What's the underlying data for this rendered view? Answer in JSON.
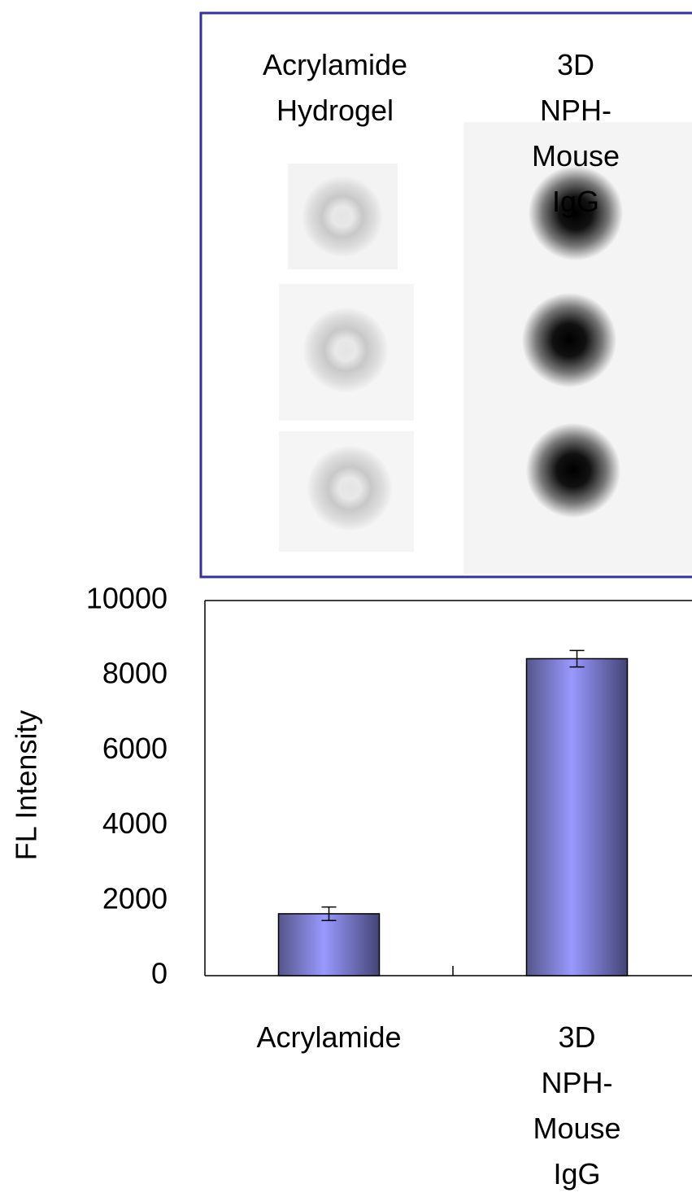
{
  "panel": {
    "labels": [
      "Acrylamide\nHydrogel",
      "3D NPH-\nMouse IgG"
    ]
  },
  "chart_data": {
    "type": "bar",
    "y_label": "FL Intensity",
    "categories": [
      "Acrylamide",
      "3D NPH-\nMouse IgG"
    ],
    "values": [
      1650,
      8450
    ],
    "errors": [
      180,
      220
    ],
    "color": "#9999ff",
    "ylim": [
      0,
      10000
    ],
    "yticks": [
      0,
      2000,
      4000,
      6000,
      8000,
      10000
    ],
    "grid": false
  }
}
